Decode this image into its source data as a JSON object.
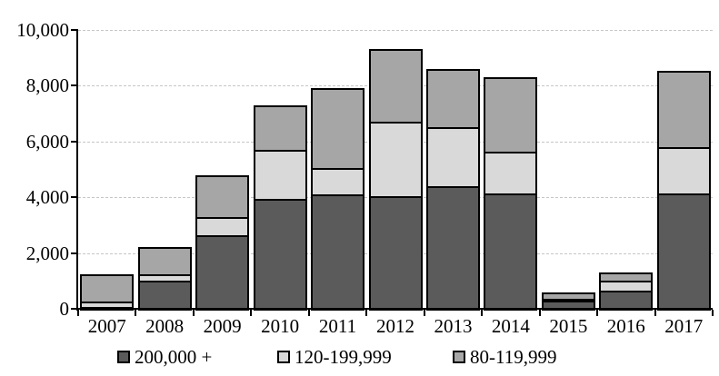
{
  "chart_data": {
    "type": "bar",
    "stacked": true,
    "title": "",
    "xlabel": "",
    "ylabel": "",
    "categories": [
      "2007",
      "2008",
      "2009",
      "2010",
      "2011",
      "2012",
      "2013",
      "2014",
      "2015",
      "2016",
      "2017"
    ],
    "series": [
      {
        "name": "200,000 +",
        "color": "#5b5b5b",
        "values": [
          50,
          1000,
          2650,
          3950,
          4100,
          4050,
          4400,
          4150,
          300,
          650,
          4150
        ]
      },
      {
        "name": "120-199,999",
        "color": "#d9d9d9",
        "values": [
          200,
          250,
          650,
          1750,
          950,
          2650,
          2100,
          1500,
          50,
          350,
          1650
        ]
      },
      {
        "name": "80-119,999",
        "color": "#a6a6a6",
        "values": [
          1000,
          950,
          1500,
          1600,
          2850,
          2600,
          2100,
          2650,
          250,
          300,
          2750
        ]
      }
    ],
    "stack_totals": [
      1250,
      2200,
      4800,
      7300,
      7900,
      9300,
      8600,
      8300,
      600,
      1300,
      8550
    ],
    "ylim": [
      0,
      10000
    ],
    "yticks": [
      0,
      2000,
      4000,
      6000,
      8000,
      10000
    ],
    "ytick_labels": [
      "0",
      "2,000",
      "4,000",
      "6,000",
      "8,000",
      "10,000"
    ],
    "grid": "horizontal-dashed",
    "legend_position": "bottom",
    "bar_border_color": "#000000",
    "gridline_color": "#c6c6c6",
    "axis_color": "#000000"
  }
}
